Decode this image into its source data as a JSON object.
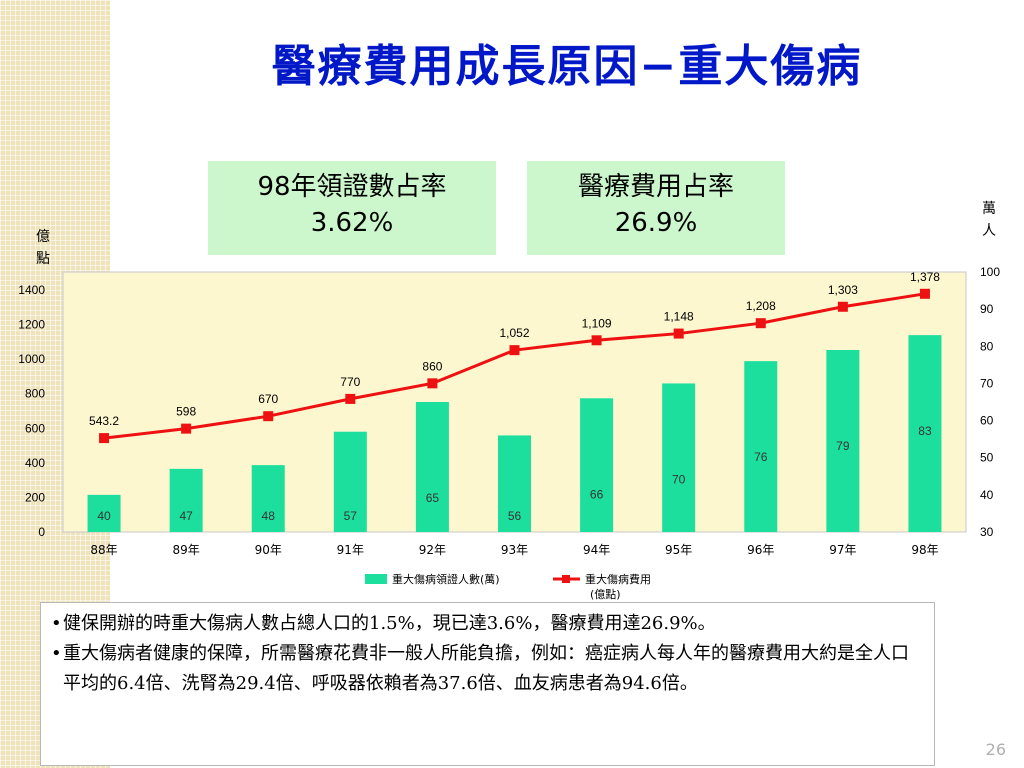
{
  "slide": {
    "title": "醫療費用成長原因−重大傷病",
    "page_number": "26"
  },
  "stat_boxes": [
    {
      "label": "98年領證數占率",
      "value": "3.62%"
    },
    {
      "label": "醫療費用占率",
      "value": "26.9%"
    }
  ],
  "units": {
    "left": "億點",
    "right": "萬人"
  },
  "bullets": [
    "健保開辦的時重大傷病人數占總人口的1.5%，現已達3.6%，醫療費用達26.9%。",
    "重大傷病者健康的保障，所需醫療花費非一般人所能負擔，例如：癌症病人每人年的醫療費用大約是全人口平均的6.4倍、洗腎為29.4倍、呼吸器依賴者為37.6倍、血友病患者為94.6倍。"
  ],
  "colors": {
    "bar": "#1ddf9d",
    "line": "#ee1111",
    "marker": "#ee1111",
    "plot_bg": "#fdf7d0",
    "title": "#0018c8"
  },
  "chart_data": {
    "type": "bar+line",
    "categories": [
      "88年",
      "89年",
      "90年",
      "91年",
      "92年",
      "93年",
      "94年",
      "95年",
      "96年",
      "97年",
      "98年"
    ],
    "series": [
      {
        "name": "重大傷病領證人數(萬)",
        "type": "bar",
        "axis": "right",
        "values": [
          40,
          47,
          48,
          57,
          65,
          56,
          66,
          70,
          76,
          79,
          83
        ],
        "labels": [
          "40",
          "47",
          "48",
          "57",
          "65",
          "56",
          "66",
          "70",
          "76",
          "79",
          "83"
        ]
      },
      {
        "name": "重大傷病費用(億點)",
        "type": "line",
        "axis": "left",
        "values": [
          543.2,
          598,
          670,
          770,
          860,
          1052,
          1109,
          1148,
          1208,
          1303,
          1378
        ],
        "labels": [
          "543.2",
          "598",
          "670",
          "770",
          "860",
          "1,052",
          "1,109",
          "1,148",
          "1,208",
          "1,303",
          "1,378"
        ]
      }
    ],
    "y_left": {
      "min": 0,
      "max": 1400,
      "ticks": [
        "0",
        "200",
        "400",
        "600",
        "800",
        "1000",
        "1200",
        "1400"
      ]
    },
    "y_right": {
      "min": 30,
      "max": 100,
      "ticks": [
        "30",
        "40",
        "50",
        "60",
        "70",
        "80",
        "90",
        "100"
      ]
    },
    "legend_position": "bottom",
    "grid": false
  }
}
